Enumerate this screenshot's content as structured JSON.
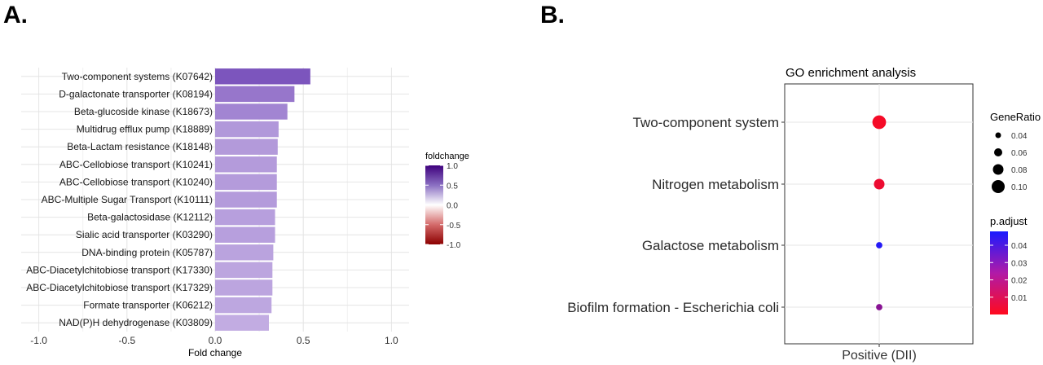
{
  "panels": {
    "a_label": "A.",
    "b_label": "B."
  },
  "chart_data": [
    {
      "type": "bar",
      "orientation": "horizontal",
      "categories": [
        "Two-component systems (K07642)",
        "D-galactonate transporter (K08194)",
        "Beta-glucoside kinase (K18673)",
        "Multidrug efflux pump (K18889)",
        "Beta-Lactam resistance (K18148)",
        "ABC-Cellobiose transport (K10241)",
        "ABC-Cellobiose transport (K10240)",
        "ABC-Multiple Sugar Transport (K10111)",
        "Beta-galactosidase (K12112)",
        "Sialic acid transporter (K03290)",
        "DNA-binding protein (K05787)",
        "ABC-Diacetylchitobiose transport (K17330)",
        "ABC-Diacetylchitobiose transport (K17329)",
        "Formate transporter (K06212)",
        "NAD(P)H dehydrogenase (K03809)"
      ],
      "values": [
        0.54,
        0.45,
        0.41,
        0.36,
        0.355,
        0.35,
        0.35,
        0.35,
        0.34,
        0.34,
        0.33,
        0.325,
        0.325,
        0.32,
        0.305
      ],
      "xlabel": "Fold change",
      "ylabel": "",
      "xlim": [
        -1.1,
        1.1
      ],
      "xticks": [
        "-1.0",
        "-0.5",
        "0.0",
        "0.5",
        "1.0"
      ],
      "xtick_values": [
        -1.0,
        -0.5,
        0.0,
        0.5,
        1.0
      ],
      "grid": true,
      "legend": {
        "title": "foldchange",
        "placement": "right",
        "ticks": [
          "1.0",
          "0.5",
          "0.0",
          "-0.5",
          "-1.0"
        ],
        "tick_values": [
          1.0,
          0.5,
          0.0,
          -0.5,
          -1.0
        ],
        "colors": {
          "high": "#3f007d",
          "mid": "#ffffff",
          "low": "#8b0000"
        }
      }
    },
    {
      "type": "scatter",
      "title": "GO enrichment analysis",
      "categories": [
        "Two-component system",
        "Nitrogen metabolism",
        "Galactose metabolism",
        "Biofilm formation - Escherichia coli"
      ],
      "x": [
        "Positive (DII)",
        "Positive (DII)",
        "Positive (DII)",
        "Positive (DII)"
      ],
      "gene_ratio": [
        0.105,
        0.08,
        0.045,
        0.045
      ],
      "p_adjust": [
        0.002,
        0.004,
        0.046,
        0.025
      ],
      "xlabel": "",
      "ylabel": "",
      "grid": true,
      "legend_size": {
        "title": "GeneRatio",
        "placement": "right",
        "ticks": [
          "0.04",
          "0.06",
          "0.08",
          "0.10"
        ],
        "tick_values": [
          0.04,
          0.06,
          0.08,
          0.1
        ]
      },
      "legend_color": {
        "title": "p.adjust",
        "placement": "right",
        "ticks": [
          "0.04",
          "0.03",
          "0.02",
          "0.01"
        ],
        "tick_values": [
          0.04,
          0.03,
          0.02,
          0.01
        ],
        "range": [
          0.0,
          0.048
        ],
        "colors": {
          "high": "#1a1aff",
          "low": "#ff0a1e"
        }
      }
    }
  ]
}
